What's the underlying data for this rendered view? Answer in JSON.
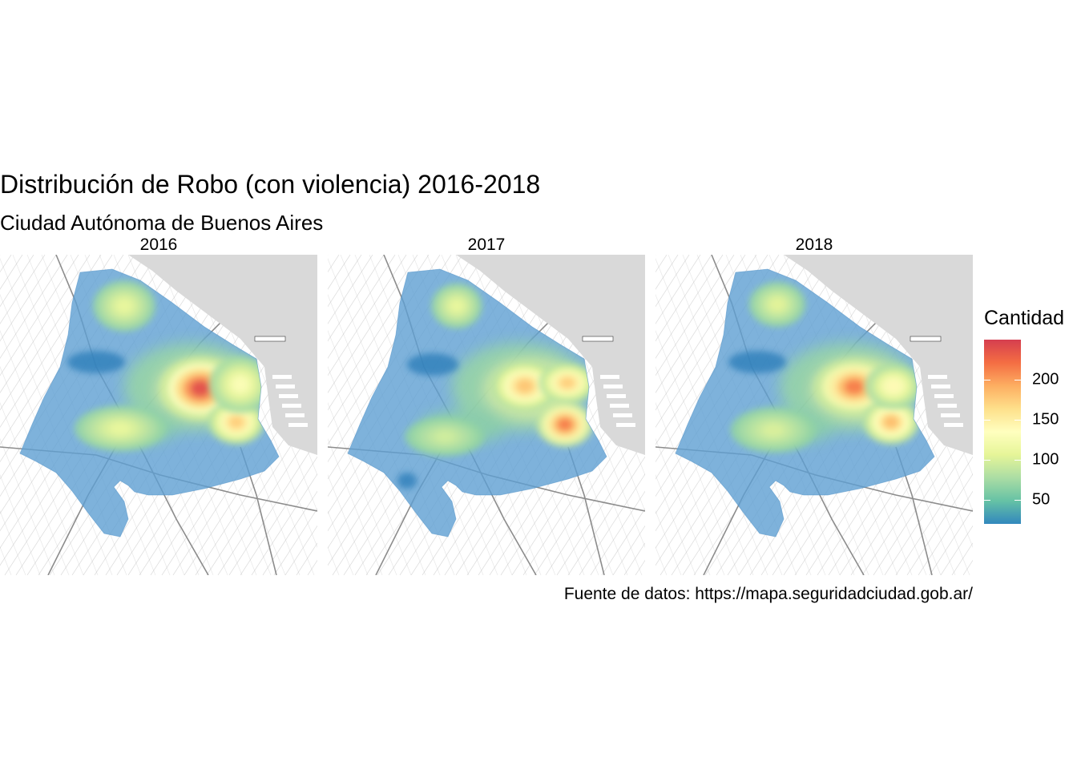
{
  "title": "Distribución de Robo (con violencia) 2016-2018",
  "subtitle": "Ciudad Autónoma de Buenos Aires",
  "caption": "Fuente de datos: https://mapa.seguridadciudad.gob.ar/",
  "panels": [
    {
      "label": "2016",
      "hotspots": [
        {
          "cx": 250,
          "cy": 485,
          "rx": 26,
          "ry": 20,
          "intensity": 240
        },
        {
          "cx": 295,
          "cy": 527,
          "rx": 18,
          "ry": 14,
          "intensity": 175
        },
        {
          "cx": 155,
          "cy": 382,
          "rx": 20,
          "ry": 16,
          "intensity": 110
        },
        {
          "cx": 150,
          "cy": 535,
          "rx": 30,
          "ry": 14,
          "intensity": 110
        },
        {
          "cx": 300,
          "cy": 480,
          "rx": 20,
          "ry": 18,
          "intensity": 130
        }
      ],
      "coldspots": [
        {
          "cx": 120,
          "cy": 452,
          "rx": 36,
          "ry": 14
        }
      ]
    },
    {
      "label": "2017",
      "hotspots": [
        {
          "cx": 655,
          "cy": 482,
          "rx": 22,
          "ry": 16,
          "intensity": 180
        },
        {
          "cx": 708,
          "cy": 478,
          "rx": 18,
          "ry": 12,
          "intensity": 175
        },
        {
          "cx": 705,
          "cy": 530,
          "rx": 18,
          "ry": 14,
          "intensity": 215
        },
        {
          "cx": 570,
          "cy": 382,
          "rx": 16,
          "ry": 14,
          "intensity": 110
        },
        {
          "cx": 555,
          "cy": 545,
          "rx": 26,
          "ry": 12,
          "intensity": 95
        }
      ],
      "coldspots": [
        {
          "cx": 540,
          "cy": 455,
          "rx": 32,
          "ry": 14
        },
        {
          "cx": 508,
          "cy": 600,
          "rx": 12,
          "ry": 10
        }
      ]
    },
    {
      "label": "2018",
      "hotspots": [
        {
          "cx": 1066,
          "cy": 483,
          "rx": 26,
          "ry": 18,
          "intensity": 215
        },
        {
          "cx": 1112,
          "cy": 527,
          "rx": 18,
          "ry": 14,
          "intensity": 185
        },
        {
          "cx": 970,
          "cy": 380,
          "rx": 18,
          "ry": 14,
          "intensity": 105
        },
        {
          "cx": 1115,
          "cy": 482,
          "rx": 18,
          "ry": 14,
          "intensity": 140
        },
        {
          "cx": 965,
          "cy": 537,
          "rx": 28,
          "ry": 14,
          "intensity": 100
        }
      ],
      "coldspots": [
        {
          "cx": 945,
          "cy": 452,
          "rx": 36,
          "ry": 14
        }
      ]
    }
  ],
  "legend": {
    "title": "Cantidad",
    "min": 20,
    "max": 250,
    "ticks": [
      {
        "value": 200,
        "label": "200"
      },
      {
        "value": 150,
        "label": "150"
      },
      {
        "value": 100,
        "label": "100"
      },
      {
        "value": 50,
        "label": "50"
      }
    ],
    "colors": [
      "#3288bd",
      "#66c2a5",
      "#abdda4",
      "#e6f598",
      "#ffffbf",
      "#fee08b",
      "#fdae61",
      "#f46d43",
      "#d53e4f"
    ]
  },
  "colors": {
    "water": "#d9d9d9",
    "land": "#ffffff",
    "streets": "#bdbdbd",
    "coverage": "#5e9fd2"
  }
}
